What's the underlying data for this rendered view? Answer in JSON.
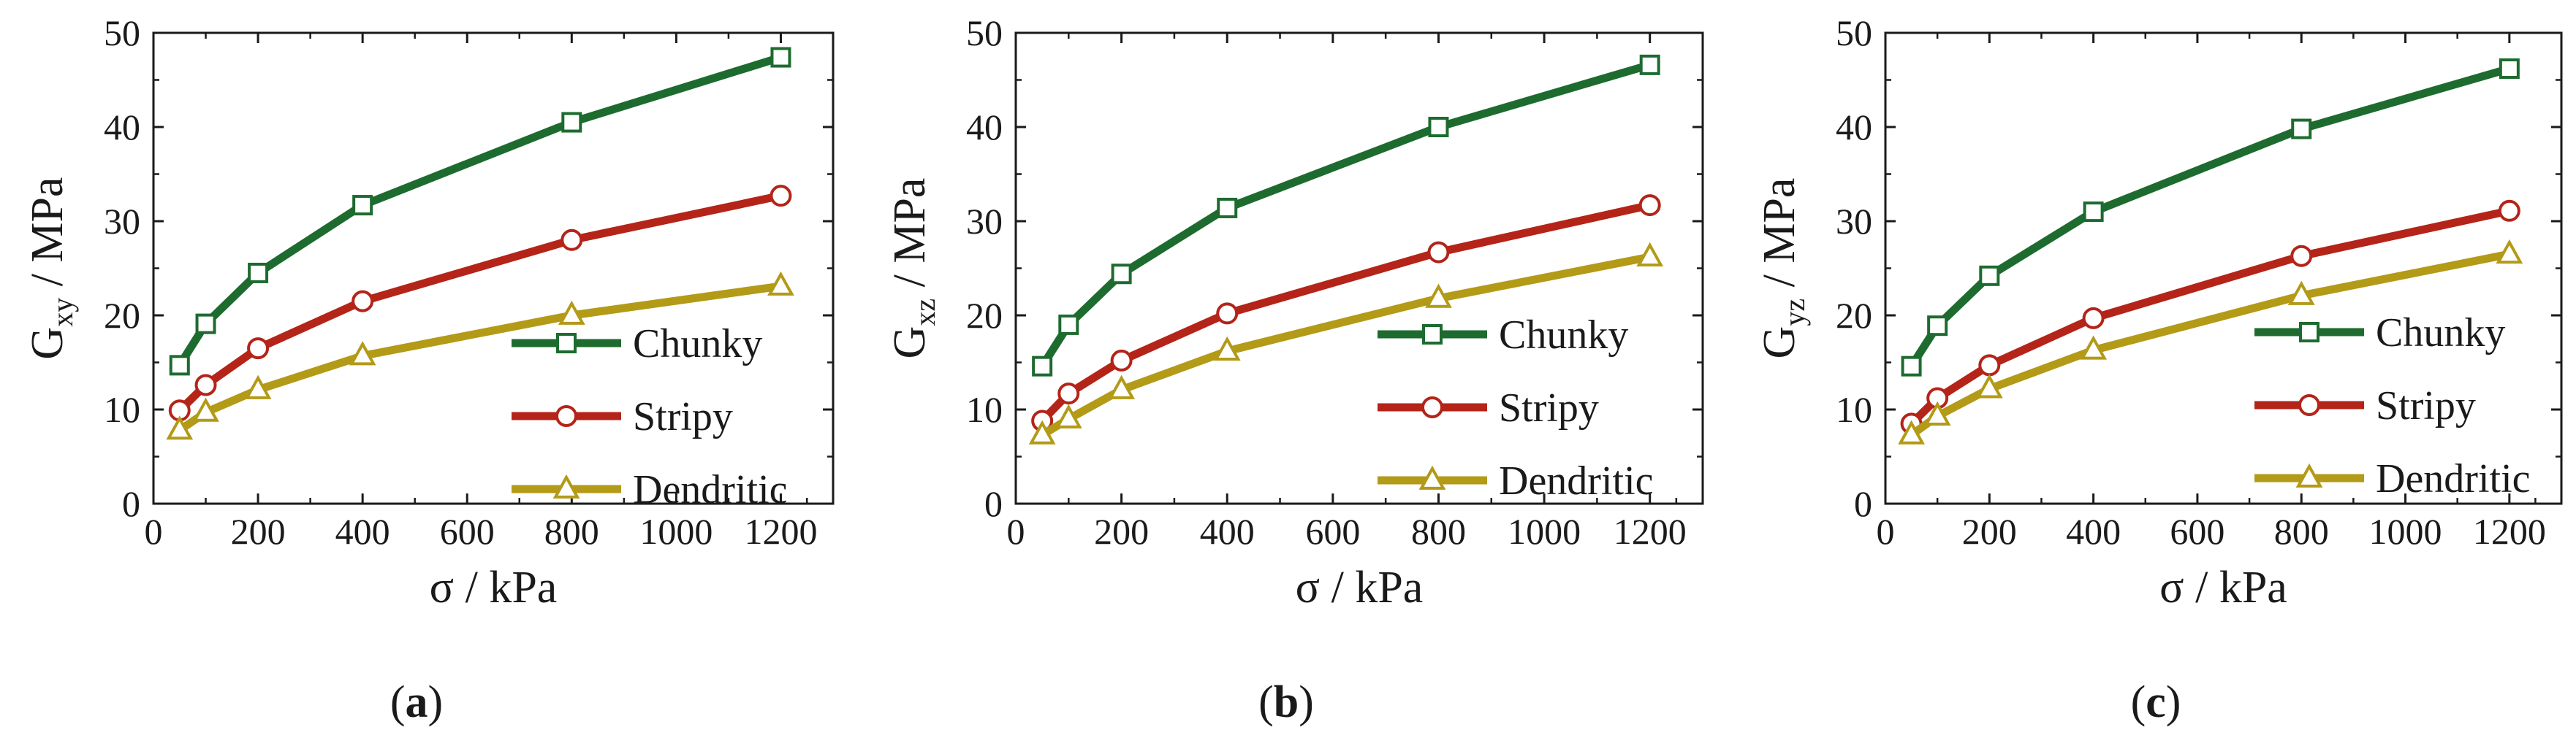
{
  "figure": {
    "background": "#ffffff",
    "axis_color": "#1a1a1a"
  },
  "chart_data": [
    {
      "id": "a",
      "type": "line",
      "panel_label": "a",
      "xlabel": "σ / kPa",
      "ylabel_main": "G",
      "ylabel_sub": "xy",
      "ylabel_rest": " / MPa",
      "xlim": [
        0,
        1300
      ],
      "ylim": [
        0,
        50
      ],
      "xticks": [
        0,
        200,
        400,
        600,
        800,
        1000,
        1200
      ],
      "yticks": [
        0,
        10,
        20,
        30,
        40,
        50
      ],
      "grid": false,
      "legend_position": "right-center",
      "x": [
        50,
        100,
        200,
        400,
        800,
        1200
      ],
      "series": [
        {
          "name": "Chunky",
          "marker": "square",
          "color": "#1d6b2f",
          "values": [
            14.7,
            19.1,
            24.5,
            31.7,
            40.5,
            47.4
          ]
        },
        {
          "name": "Stripy",
          "marker": "circle",
          "color": "#b42418",
          "values": [
            9.9,
            12.6,
            16.5,
            21.5,
            28.0,
            32.7
          ]
        },
        {
          "name": "Dendritic",
          "marker": "triangle",
          "color": "#b39a17",
          "values": [
            7.8,
            9.7,
            12.1,
            15.7,
            20.0,
            23.1
          ]
        }
      ]
    },
    {
      "id": "b",
      "type": "line",
      "panel_label": "b",
      "xlabel": "σ / kPa",
      "ylabel_main": "G",
      "ylabel_sub": "xz",
      "ylabel_rest": " / MPa",
      "xlim": [
        0,
        1300
      ],
      "ylim": [
        0,
        50
      ],
      "xticks": [
        0,
        200,
        400,
        600,
        800,
        1000,
        1200
      ],
      "yticks": [
        0,
        10,
        20,
        30,
        40,
        50
      ],
      "grid": false,
      "legend_position": "right-center",
      "x": [
        50,
        100,
        200,
        400,
        800,
        1200
      ],
      "series": [
        {
          "name": "Chunky",
          "marker": "square",
          "color": "#1d6b2f",
          "values": [
            14.6,
            19.0,
            24.4,
            31.4,
            40.0,
            46.6
          ]
        },
        {
          "name": "Stripy",
          "marker": "circle",
          "color": "#b42418",
          "values": [
            8.8,
            11.7,
            15.2,
            20.2,
            26.7,
            31.7
          ]
        },
        {
          "name": "Dendritic",
          "marker": "triangle",
          "color": "#b39a17",
          "values": [
            7.3,
            9.0,
            12.1,
            16.2,
            21.8,
            26.2
          ]
        }
      ]
    },
    {
      "id": "c",
      "type": "line",
      "panel_label": "c",
      "xlabel": "σ / kPa",
      "ylabel_main": "G",
      "ylabel_sub": "yz",
      "ylabel_rest": " / MPa",
      "xlim": [
        0,
        1300
      ],
      "ylim": [
        0,
        50
      ],
      "xticks": [
        0,
        200,
        400,
        600,
        800,
        1000,
        1200
      ],
      "yticks": [
        0,
        10,
        20,
        30,
        40,
        50
      ],
      "grid": false,
      "legend_position": "right-center",
      "x": [
        50,
        100,
        200,
        400,
        800,
        1200
      ],
      "series": [
        {
          "name": "Chunky",
          "marker": "square",
          "color": "#1d6b2f",
          "values": [
            14.6,
            18.9,
            24.2,
            31.0,
            39.8,
            46.2
          ]
        },
        {
          "name": "Stripy",
          "marker": "circle",
          "color": "#b42418",
          "values": [
            8.5,
            11.2,
            14.7,
            19.7,
            26.3,
            31.1
          ]
        },
        {
          "name": "Dendritic",
          "marker": "triangle",
          "color": "#b39a17",
          "values": [
            7.3,
            9.3,
            12.2,
            16.3,
            22.1,
            26.5
          ]
        }
      ]
    }
  ]
}
